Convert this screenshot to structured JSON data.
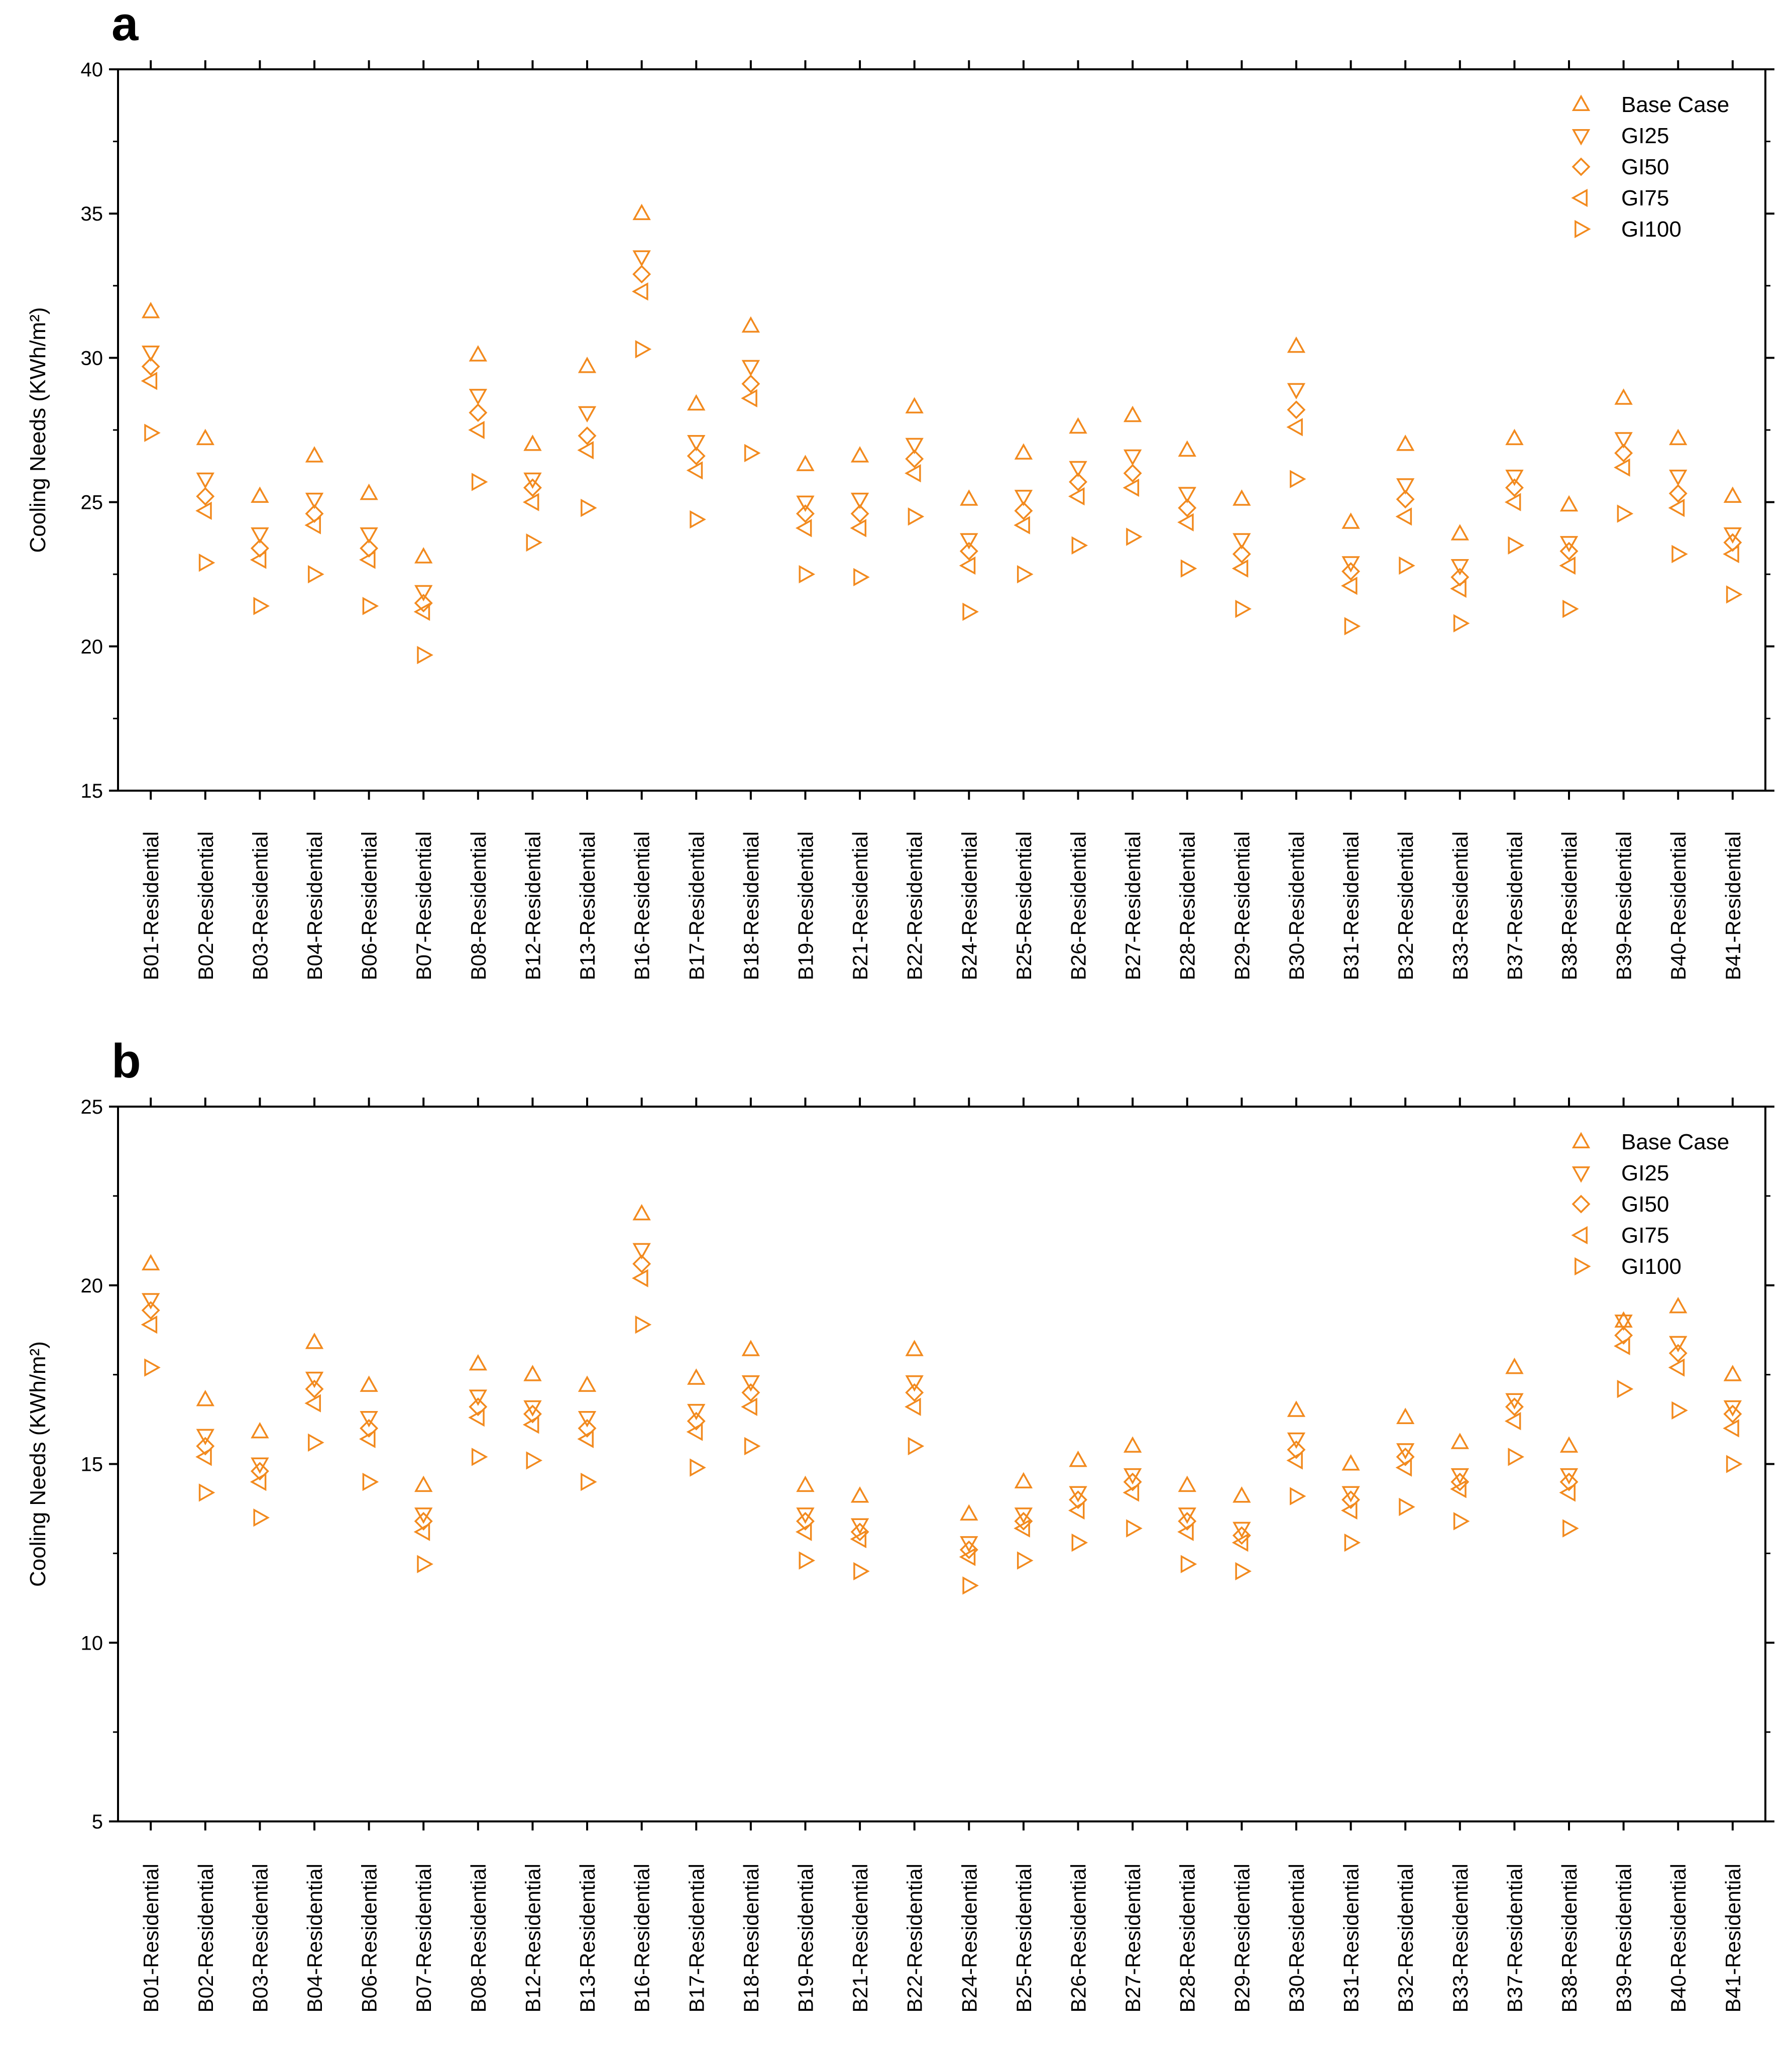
{
  "chart_data": [
    {
      "panel": "a",
      "type": "scatter",
      "title": "",
      "xlabel": "",
      "ylabel": "Cooling Needs (KWh/m²)",
      "ylim": [
        15,
        40
      ],
      "yticks": [
        15,
        20,
        25,
        30,
        35,
        40
      ],
      "grid": false,
      "legend_position": "top-right",
      "categories": [
        "B01-Residential",
        "B02-Residential",
        "B03-Residential",
        "B04-Residential",
        "B06-Residential",
        "B07-Residential",
        "B08-Residential",
        "B12-Residential",
        "B13-Residential",
        "B16-Residential",
        "B17-Residential",
        "B18-Residential",
        "B19-Residential",
        "B21-Residential",
        "B22-Residential",
        "B24-Residential",
        "B25-Residential",
        "B26-Residential",
        "B27-Residential",
        "B28-Residential",
        "B29-Residential",
        "B30-Residential",
        "B31-Residential",
        "B32-Residential",
        "B33-Residential",
        "B37-Residential",
        "B38-Residential",
        "B39-Residential",
        "B40-Residential",
        "B41-Residential"
      ],
      "series": [
        {
          "name": "Base Case",
          "marker": "triangle-up",
          "values": [
            31.6,
            27.2,
            25.2,
            26.6,
            25.3,
            23.1,
            30.1,
            27.0,
            29.7,
            35.0,
            28.4,
            31.1,
            26.3,
            26.6,
            28.3,
            25.1,
            26.7,
            27.6,
            28.0,
            26.8,
            25.1,
            30.4,
            24.3,
            27.0,
            23.9,
            27.2,
            24.9,
            28.6,
            27.2,
            25.2
          ]
        },
        {
          "name": "GI25",
          "marker": "triangle-down",
          "values": [
            30.2,
            25.8,
            23.9,
            25.1,
            23.9,
            21.9,
            28.7,
            25.8,
            28.1,
            33.5,
            27.1,
            29.7,
            25.0,
            25.1,
            27.0,
            23.7,
            25.2,
            26.2,
            26.6,
            25.3,
            23.7,
            28.9,
            22.9,
            25.6,
            22.8,
            25.9,
            23.6,
            27.2,
            25.9,
            23.9
          ]
        },
        {
          "name": "GI50",
          "marker": "diamond",
          "values": [
            29.7,
            25.2,
            23.4,
            24.6,
            23.4,
            21.5,
            28.1,
            25.5,
            27.3,
            32.9,
            26.6,
            29.1,
            24.6,
            24.6,
            26.5,
            23.3,
            24.7,
            25.7,
            26.0,
            24.8,
            23.2,
            28.2,
            22.6,
            25.1,
            22.4,
            25.5,
            23.3,
            26.7,
            25.3,
            23.6
          ]
        },
        {
          "name": "GI75",
          "marker": "triangle-left",
          "values": [
            29.2,
            24.7,
            23.0,
            24.2,
            23.0,
            21.2,
            27.5,
            25.0,
            26.8,
            32.3,
            26.1,
            28.6,
            24.1,
            24.1,
            26.0,
            22.8,
            24.2,
            25.2,
            25.5,
            24.3,
            22.7,
            27.6,
            22.1,
            24.5,
            22.0,
            25.0,
            22.8,
            26.2,
            24.8,
            23.2
          ]
        },
        {
          "name": "GI100",
          "marker": "triangle-right",
          "values": [
            27.4,
            22.9,
            21.4,
            22.5,
            21.4,
            19.7,
            25.7,
            23.6,
            24.8,
            30.3,
            24.4,
            26.7,
            22.5,
            22.4,
            24.5,
            21.2,
            22.5,
            23.5,
            23.8,
            22.7,
            21.3,
            25.8,
            20.7,
            22.8,
            20.8,
            23.5,
            21.3,
            24.6,
            23.2,
            21.8
          ]
        }
      ]
    },
    {
      "panel": "b",
      "type": "scatter",
      "title": "",
      "xlabel": "",
      "ylabel": "Cooling Needs (KWh/m²)",
      "ylim": [
        5,
        25
      ],
      "yticks": [
        5,
        10,
        15,
        20,
        25
      ],
      "grid": false,
      "legend_position": "top-right",
      "categories": [
        "B01-Residential",
        "B02-Residential",
        "B03-Residential",
        "B04-Residential",
        "B06-Residential",
        "B07-Residential",
        "B08-Residential",
        "B12-Residential",
        "B13-Residential",
        "B16-Residential",
        "B17-Residential",
        "B18-Residential",
        "B19-Residential",
        "B21-Residential",
        "B22-Residential",
        "B24-Residential",
        "B25-Residential",
        "B26-Residential",
        "B27-Residential",
        "B28-Residential",
        "B29-Residential",
        "B30-Residential",
        "B31-Residential",
        "B32-Residential",
        "B33-Residential",
        "B37-Residential",
        "B38-Residential",
        "B39-Residential",
        "B40-Residential",
        "B41-Residential"
      ],
      "series": [
        {
          "name": "Base Case",
          "marker": "triangle-up",
          "values": [
            20.6,
            16.8,
            15.9,
            18.4,
            17.2,
            14.4,
            17.8,
            17.5,
            17.2,
            22.0,
            17.4,
            18.2,
            14.4,
            14.1,
            18.2,
            13.6,
            14.5,
            15.1,
            15.5,
            14.4,
            14.1,
            16.5,
            15.0,
            16.3,
            15.6,
            17.7,
            15.5,
            19.0,
            19.4,
            17.5
          ]
        },
        {
          "name": "GI25",
          "marker": "triangle-down",
          "values": [
            19.6,
            15.8,
            15.0,
            17.4,
            16.3,
            13.6,
            16.9,
            16.6,
            16.3,
            21.0,
            16.5,
            17.3,
            13.6,
            13.3,
            17.3,
            12.8,
            13.6,
            14.2,
            14.7,
            13.6,
            13.2,
            15.7,
            14.2,
            15.4,
            14.7,
            16.8,
            14.7,
            19.0,
            18.4,
            16.6
          ]
        },
        {
          "name": "GI50",
          "marker": "diamond",
          "values": [
            19.3,
            15.5,
            14.8,
            17.1,
            16.0,
            13.4,
            16.6,
            16.4,
            16.0,
            20.6,
            16.2,
            17.0,
            13.4,
            13.1,
            17.0,
            12.6,
            13.4,
            14.0,
            14.5,
            13.4,
            13.0,
            15.4,
            14.0,
            15.2,
            14.5,
            16.6,
            14.5,
            18.6,
            18.1,
            16.4
          ]
        },
        {
          "name": "GI75",
          "marker": "triangle-left",
          "values": [
            18.9,
            15.2,
            14.5,
            16.7,
            15.7,
            13.1,
            16.3,
            16.1,
            15.7,
            20.2,
            15.9,
            16.6,
            13.1,
            12.9,
            16.6,
            12.4,
            13.2,
            13.7,
            14.2,
            13.1,
            12.8,
            15.1,
            13.7,
            14.9,
            14.3,
            16.2,
            14.2,
            18.3,
            17.7,
            16.0
          ]
        },
        {
          "name": "GI100",
          "marker": "triangle-right",
          "values": [
            17.7,
            14.2,
            13.5,
            15.6,
            14.5,
            12.2,
            15.2,
            15.1,
            14.5,
            18.9,
            14.9,
            15.5,
            12.3,
            12.0,
            15.5,
            11.6,
            12.3,
            12.8,
            13.2,
            12.2,
            12.0,
            14.1,
            12.8,
            13.8,
            13.4,
            15.2,
            13.2,
            17.1,
            16.5,
            15.0
          ]
        }
      ]
    }
  ],
  "panels": [
    {
      "letter": "a",
      "legend": [
        "Base Case",
        "GI25",
        "GI50",
        "GI75",
        "GI100"
      ]
    },
    {
      "letter": "b",
      "legend": [
        "Base Case",
        "GI25",
        "GI50",
        "GI75",
        "GI100"
      ]
    }
  ],
  "colors": {
    "marker": "#f28a1e",
    "axis": "#000000"
  }
}
